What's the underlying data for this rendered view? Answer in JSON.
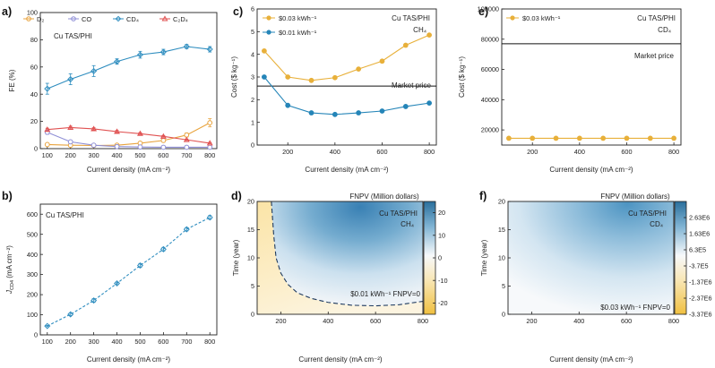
{
  "chart_data": [
    {
      "id": "a",
      "type": "line",
      "panel_label": "a)",
      "title": "",
      "annotation": "Cu TAS/PHI",
      "xlabel": "Current density (mA cm⁻²)",
      "ylabel": "FE (%)",
      "xlim": [
        70,
        830
      ],
      "ylim": [
        0,
        100
      ],
      "xticks": [
        100,
        200,
        300,
        400,
        500,
        600,
        700,
        800
      ],
      "yticks": [
        0,
        20,
        40,
        60,
        80,
        100
      ],
      "x": [
        100,
        200,
        300,
        400,
        500,
        600,
        700,
        800
      ],
      "series": [
        {
          "name": "D2",
          "legend_label": "D₂",
          "color": "#e8a33d",
          "values": [
            3,
            2.5,
            2.3,
            2.5,
            4,
            6,
            10,
            19
          ],
          "errors": [
            1,
            1,
            0.8,
            0.8,
            1,
            1.2,
            1.5,
            3
          ]
        },
        {
          "name": "CO",
          "legend_label": "CO",
          "color": "#8f8fd6",
          "values": [
            12,
            5,
            2.5,
            1.5,
            1.2,
            1,
            1,
            1
          ],
          "errors": [
            1.5,
            1,
            0.5,
            0.4,
            0.3,
            0.3,
            0.3,
            0.3
          ]
        },
        {
          "name": "CD4",
          "legend_label": "CD₄",
          "color": "#2e8dbf",
          "values": [
            44,
            51,
            57,
            64,
            69,
            71,
            75,
            73
          ],
          "errors": [
            4,
            4,
            4,
            2,
            2.5,
            2,
            1.5,
            2
          ]
        },
        {
          "name": "C2D4",
          "legend_label": "C₂D₄",
          "color": "#e05252",
          "values": [
            14,
            15.5,
            14.5,
            12.5,
            11,
            9,
            6.5,
            4
          ],
          "errors": [
            1,
            1,
            0.8,
            0.8,
            0.7,
            0.6,
            0.5,
            0.5
          ]
        }
      ]
    },
    {
      "id": "b",
      "type": "line",
      "panel_label": "b)",
      "annotation": "Cu TAS/PHI",
      "xlabel": "Current density (mA cm⁻²)",
      "ylabel": "J",
      "ylabel_sub": "CD4",
      "ylabel_unit": " (mA cm⁻²)",
      "xlim": [
        70,
        830
      ],
      "ylim": [
        0,
        650
      ],
      "xticks": [
        100,
        200,
        300,
        400,
        500,
        600,
        700,
        800
      ],
      "yticks": [
        0,
        100,
        200,
        300,
        400,
        500,
        600
      ],
      "x": [
        100,
        200,
        300,
        400,
        500,
        600,
        700,
        800
      ],
      "series": [
        {
          "name": "J_CD4",
          "color": "#2e8dbf",
          "dashed": true,
          "values": [
            44,
            102,
            171,
            256,
            345,
            426,
            525,
            584
          ],
          "errors": [
            3,
            6,
            9,
            6,
            10,
            9,
            8,
            9
          ]
        }
      ]
    },
    {
      "id": "c",
      "type": "line",
      "panel_label": "c)",
      "annotation_line1": "Cu TAS/PHI",
      "annotation_line2": "CH₄",
      "xlabel": "Current density (mA cm⁻²)",
      "ylabel": "Cost ($ kg⁻¹)",
      "xlim": [
        70,
        830
      ],
      "ylim": [
        0,
        6
      ],
      "xticks": [
        200,
        400,
        600,
        800
      ],
      "yticks": [
        0,
        1,
        2,
        3,
        4,
        5,
        6
      ],
      "reference_line": {
        "label": "Market price",
        "value": 2.6
      },
      "x": [
        100,
        200,
        300,
        400,
        500,
        600,
        700,
        800
      ],
      "series": [
        {
          "name": "$0.03 kWh⁻¹",
          "color": "#e8b03a",
          "values": [
            4.15,
            3.0,
            2.85,
            2.97,
            3.35,
            3.7,
            4.4,
            4.85
          ]
        },
        {
          "name": "$0.01 kWh⁻¹",
          "color": "#2585b8",
          "values": [
            3.0,
            1.75,
            1.42,
            1.35,
            1.42,
            1.5,
            1.7,
            1.85
          ]
        }
      ]
    },
    {
      "id": "e",
      "type": "line",
      "panel_label": "e)",
      "annotation_line1": "Cu TAS/PHI",
      "annotation_line2": "CD₄",
      "xlabel": "Current density (mA cm⁻²)",
      "ylabel": "Cost ($ kg⁻¹)",
      "xlim": [
        70,
        830
      ],
      "ylim": [
        10000,
        100000
      ],
      "xticks": [
        200,
        400,
        600,
        800
      ],
      "yticks": [
        20000,
        40000,
        60000,
        80000,
        100000
      ],
      "reference_line": {
        "label": "Market price",
        "value": 77000
      },
      "x": [
        100,
        200,
        300,
        400,
        500,
        600,
        700,
        800
      ],
      "series": [
        {
          "name": "$0.03 kWh⁻¹",
          "color": "#e8b03a",
          "values": [
            14500,
            14500,
            14500,
            14500,
            14500,
            14500,
            14500,
            14500
          ]
        }
      ]
    },
    {
      "id": "d",
      "type": "heatmap",
      "panel_label": "d)",
      "annotation_line1": "Cu TAS/PHI",
      "annotation_line2": "CH₄",
      "xlabel": "Current density (mA cm⁻²)",
      "ylabel": "Time (year)",
      "xlim": [
        100,
        800
      ],
      "ylim": [
        0,
        20
      ],
      "xticks": [
        200,
        400,
        600,
        800
      ],
      "yticks": [
        0,
        5,
        10,
        15,
        20
      ],
      "colorbar": {
        "title": "FNPV (Million dollars)",
        "min": -25,
        "max": 25,
        "ticks": [
          -20,
          -10,
          0,
          10,
          20
        ]
      },
      "contour_label": "$0.01 kWh⁻¹ FNPV=0",
      "contour": {
        "x": [
          160,
          170,
          180,
          200,
          230,
          270,
          330,
          400,
          500,
          600,
          700,
          800
        ],
        "y": [
          20,
          14,
          10,
          7.3,
          5.3,
          3.8,
          2.8,
          2.1,
          1.6,
          1.5,
          1.7,
          2.3
        ]
      }
    },
    {
      "id": "f",
      "type": "heatmap",
      "panel_label": "f)",
      "annotation_line1": "Cu TAS/PHI",
      "annotation_line2": "CD₄",
      "xlabel": "Current density (mA cm⁻²)",
      "ylabel": "Time (year)",
      "xlim": [
        100,
        800
      ],
      "ylim": [
        0,
        20
      ],
      "xticks": [
        200,
        400,
        600,
        800
      ],
      "yticks": [
        0,
        5,
        10,
        15,
        20
      ],
      "colorbar": {
        "title": "FNPV (Million dollars)",
        "min": -3.37,
        "max": 3.63,
        "ticks": [
          2.63,
          1.63,
          0.63,
          -0.37,
          -1.37,
          -2.37,
          -3.37
        ],
        "tick_labels": [
          "2.63E6",
          "1.63E6",
          "6.3E5",
          "-3.7E5",
          "-1.37E6",
          "-2.37E6",
          "-3.37E6"
        ]
      },
      "contour_label": "$0.03 kWh⁻¹ FNPV=0"
    }
  ]
}
